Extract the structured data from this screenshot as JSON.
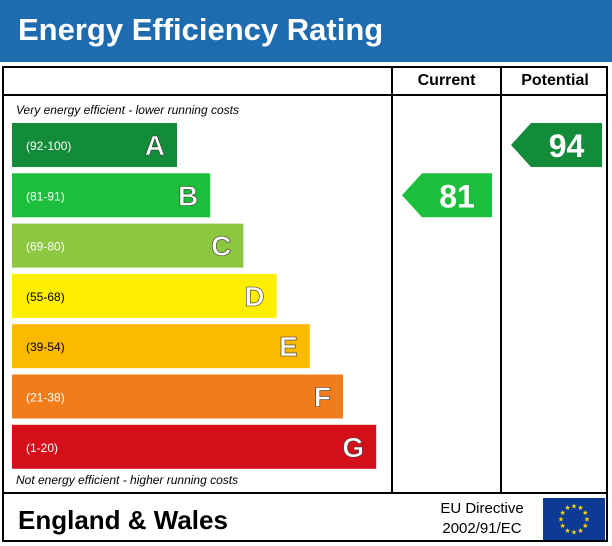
{
  "header": {
    "title": "Energy Efficiency Rating"
  },
  "columns": {
    "current": "Current",
    "potential": "Potential"
  },
  "captions": {
    "top": "Very energy efficient - lower running costs",
    "bottom": "Not energy efficient - higher running costs"
  },
  "footer": {
    "region": "England & Wales",
    "directive_line1": "EU Directive",
    "directive_line2": "2002/91/EC",
    "flag_icon": "eu-flag-icon"
  },
  "chart_data": {
    "type": "bar",
    "title": "Energy Efficiency Rating",
    "categories": [
      "A",
      "B",
      "C",
      "D",
      "E",
      "F",
      "G"
    ],
    "ranges": [
      "(92-100)",
      "(81-91)",
      "(69-80)",
      "(55-68)",
      "(39-54)",
      "(21-38)",
      "(1-20)"
    ],
    "colors": [
      "#138c3a",
      "#1cbf3b",
      "#8dc63f",
      "#ffee00",
      "#fbb900",
      "#f07d1a",
      "#d50f1a"
    ],
    "current": {
      "value": 81,
      "band": "B",
      "color": "#1cbf3b"
    },
    "potential": {
      "value": 94,
      "band": "A",
      "color": "#138c3a"
    }
  }
}
